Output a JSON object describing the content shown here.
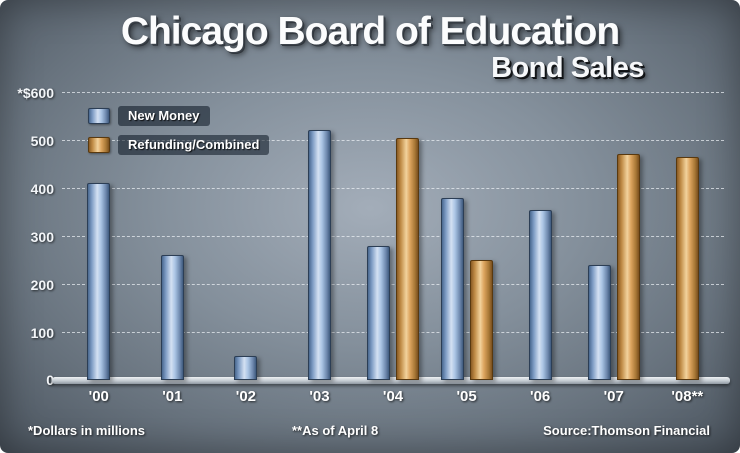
{
  "title": "Chicago Board of Education",
  "subtitle": "Bond Sales",
  "footnotes": {
    "left": "*Dollars in millions",
    "center": "**As of April 8",
    "right": "Source:Thomson Financial"
  },
  "legend": [
    {
      "label": "New Money",
      "color": "#aac4e4"
    },
    {
      "label": "Refunding/Combined",
      "color": "#dca45e"
    }
  ],
  "colors": {
    "new_money_bar": "#aac4e4",
    "refunding_bar": "#dca45e",
    "background": "#8a96a2",
    "text": "#ffffff"
  },
  "chart_data": {
    "type": "bar",
    "title": "Chicago Board of Education Bond Sales",
    "xlabel": "",
    "ylabel": "*$ (Dollars in millions)",
    "ylim": [
      0,
      600
    ],
    "grid": "dashed horizontal",
    "legend_position": "top-left",
    "categories": [
      "'00",
      "'01",
      "'02",
      "'03",
      "'04",
      "'05",
      "'06",
      "'07",
      "'08**"
    ],
    "series": [
      {
        "name": "New Money",
        "values": [
          410,
          260,
          50,
          520,
          280,
          380,
          355,
          240,
          null
        ]
      },
      {
        "name": "Refunding/Combined",
        "values": [
          null,
          null,
          null,
          null,
          505,
          250,
          null,
          470,
          465
        ]
      }
    ],
    "yticks": [
      {
        "label": "*$600",
        "value": 600
      },
      {
        "label": "500",
        "value": 500
      },
      {
        "label": "400",
        "value": 400
      },
      {
        "label": "300",
        "value": 300
      },
      {
        "label": "200",
        "value": 200
      },
      {
        "label": "100",
        "value": 100
      },
      {
        "label": "0",
        "value": 0
      }
    ]
  }
}
